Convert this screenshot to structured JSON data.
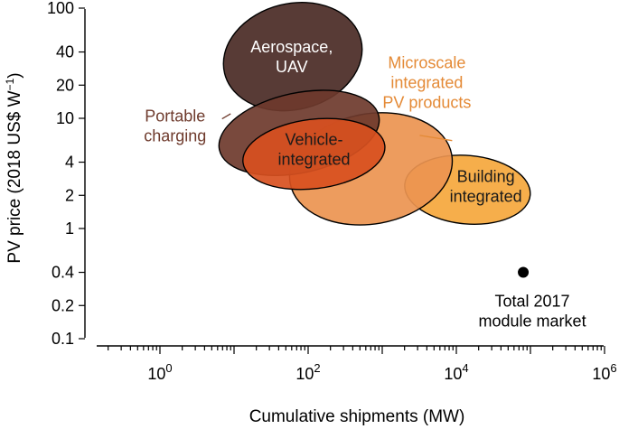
{
  "chart_data": {
    "type": "scatter",
    "title": "",
    "xlabel": "Cumulative shipments (MW)",
    "ylabel": "PV price (2018 US$ W",
    "ylabel_superscript": "−1",
    "ylabel_close": ")",
    "x_scale": "log",
    "y_scale": "log",
    "xlim": [
      0.2,
      1000000
    ],
    "ylim": [
      0.1,
      100
    ],
    "x_ticks": [
      {
        "value": 1,
        "base": "10",
        "exp": "0"
      },
      {
        "value": 100,
        "base": "10",
        "exp": "2"
      },
      {
        "value": 10000,
        "base": "10",
        "exp": "4"
      },
      {
        "value": 1000000,
        "base": "10",
        "exp": "6"
      }
    ],
    "y_ticks": [
      {
        "value": 0.1,
        "label": "0.1"
      },
      {
        "value": 0.2,
        "label": "0.2"
      },
      {
        "value": 0.4,
        "label": "0.4"
      },
      {
        "value": 1,
        "label": "1"
      },
      {
        "value": 2,
        "label": "2"
      },
      {
        "value": 4,
        "label": "4"
      },
      {
        "value": 10,
        "label": "10"
      },
      {
        "value": 20,
        "label": "20"
      },
      {
        "value": 40,
        "label": "40"
      },
      {
        "value": 100,
        "label": "100"
      }
    ],
    "grid": false,
    "legend": "none",
    "regions": [
      {
        "name": "Building integrated",
        "lines": [
          "Building",
          "integrated"
        ],
        "x_range": [
          2000,
          100000
        ],
        "y_range": [
          1.1,
          4.6
        ],
        "tilt_deg": 5,
        "color": "#F5A73C",
        "label_color": "#1a1a1a",
        "label_x": 25000,
        "label_y": 2.4
      },
      {
        "name": "Microscale integrated PV products",
        "lines": [
          "Microscale",
          "integrated",
          "PV products"
        ],
        "x_range": [
          55,
          9000
        ],
        "y_range": [
          1.1,
          11
        ],
        "tilt_deg": -10,
        "color": "#EC9450",
        "label_color": "#E48A36",
        "label_x": 4000,
        "label_y": 21,
        "leader_to_x": 3200,
        "leader_to_y": 7
      },
      {
        "name": "Aerospace, UAV",
        "lines": [
          "Aerospace,",
          "UAV"
        ],
        "x_range": [
          7,
          550
        ],
        "y_range": [
          12,
          110
        ],
        "tilt_deg": -14,
        "color": "#4A2A25",
        "label_color": "#ffffff",
        "label_x": 60,
        "label_y": 36
      },
      {
        "name": "Portable charging",
        "lines": [
          "Portable",
          "charging"
        ],
        "x_range": [
          6,
          950
        ],
        "y_range": [
          3.2,
          17
        ],
        "tilt_deg": -12,
        "color": "#6E3A2C",
        "label_color": "#6E3A2C",
        "label_x": 1.6,
        "label_y": 8.5,
        "leader_to_x": 9,
        "leader_to_y": 11
      },
      {
        "name": "Vehicle-integrated",
        "lines": [
          "Vehicle-",
          "integrated"
        ],
        "x_range": [
          13,
          1100
        ],
        "y_range": [
          2.3,
          9.8
        ],
        "tilt_deg": -7,
        "color": "#D8501F",
        "label_color": "#1a1a1a",
        "label_x": 120,
        "label_y": 5.2
      }
    ],
    "points": [
      {
        "name": "Total 2017 module market",
        "lines": [
          "Total 2017",
          "module market"
        ],
        "x": 80000,
        "y": 0.4,
        "color": "#000000"
      }
    ]
  }
}
